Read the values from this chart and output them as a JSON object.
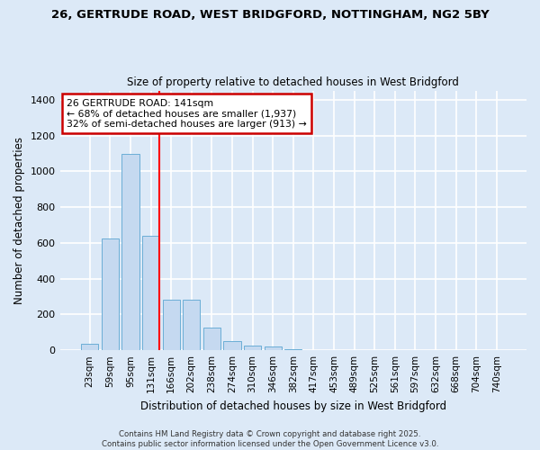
{
  "title_line1": "26, GERTRUDE ROAD, WEST BRIDGFORD, NOTTINGHAM, NG2 5BY",
  "title_line2": "Size of property relative to detached houses in West Bridgford",
  "xlabel": "Distribution of detached houses by size in West Bridgford",
  "ylabel": "Number of detached properties",
  "bar_color": "#c5d9f0",
  "bar_edgecolor": "#6baed6",
  "background_color": "#dce9f7",
  "grid_color": "#ffffff",
  "fig_facecolor": "#dce9f7",
  "categories": [
    "23sqm",
    "59sqm",
    "95sqm",
    "131sqm",
    "166sqm",
    "202sqm",
    "238sqm",
    "274sqm",
    "310sqm",
    "346sqm",
    "382sqm",
    "417sqm",
    "453sqm",
    "489sqm",
    "525sqm",
    "561sqm",
    "597sqm",
    "632sqm",
    "668sqm",
    "704sqm",
    "740sqm"
  ],
  "values": [
    35,
    625,
    1100,
    640,
    285,
    285,
    125,
    50,
    25,
    20,
    8,
    0,
    0,
    0,
    0,
    0,
    0,
    0,
    0,
    0,
    0
  ],
  "ylim": [
    0,
    1450
  ],
  "yticks": [
    0,
    200,
    400,
    600,
    800,
    1000,
    1200,
    1400
  ],
  "red_line_index": 3.43,
  "annotation_text": "26 GERTRUDE ROAD: 141sqm\n← 68% of detached houses are smaller (1,937)\n32% of semi-detached houses are larger (913) →",
  "annotation_box_edgecolor": "#cc0000",
  "footnote1": "Contains HM Land Registry data © Crown copyright and database right 2025.",
  "footnote2": "Contains public sector information licensed under the Open Government Licence v3.0."
}
